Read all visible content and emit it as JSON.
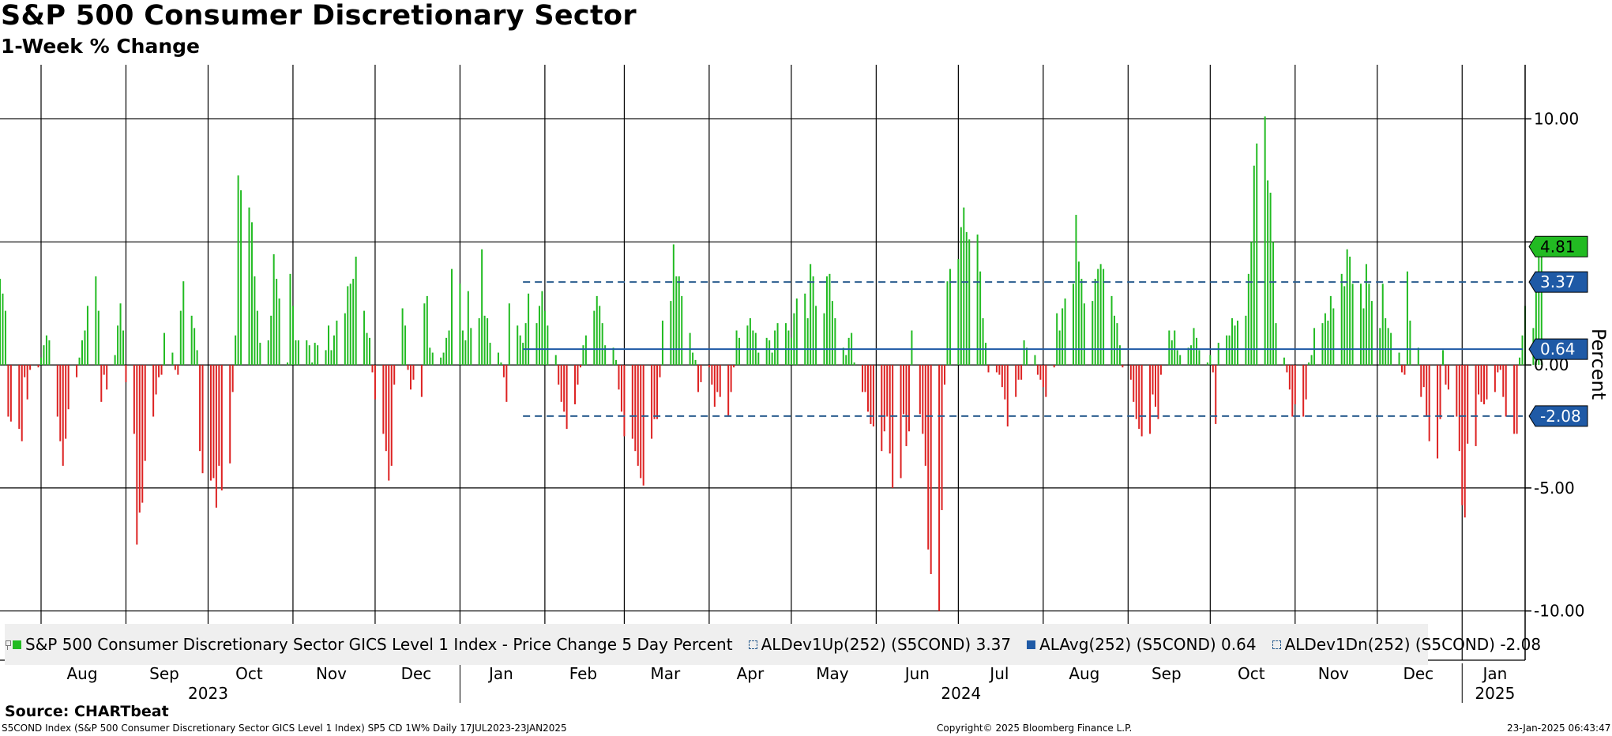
{
  "title": "S&P 500 Consumer Discretionary Sector",
  "subtitle": "1-Week % Change",
  "source": "Source: CHARTbeat",
  "footer": {
    "left": "S5COND Index (S&P 500 Consumer Discretionary Sector GICS Level 1 Index) SP5 CD 1W%  Daily 17JUL2023-23JAN2025",
    "middle": "Copyright© 2025 Bloomberg Finance L.P.",
    "right": "23-Jan-2025 06:43:47"
  },
  "legend": {
    "items": [
      {
        "label": "S&P 500 Consumer Discretionary Sector GICS Level 1 Index - Price Change 5 Day Percent",
        "style": "swatch",
        "color": "#22bb22"
      },
      {
        "label": "ALDev1Up(252) (S5COND) 3.37",
        "style": "dash",
        "color": "#2a5d8f"
      },
      {
        "label": "ALAvg(252) (S5COND) 0.64",
        "style": "swatch",
        "color": "#1f5aa6"
      },
      {
        "label": "ALDev1Dn(252) (S5COND) -2.08",
        "style": "dash",
        "color": "#2a5d8f"
      }
    ]
  },
  "colors": {
    "positive": "#22bb22",
    "negative": "#dd2222",
    "band": "#2a5d8f",
    "avg": "#1f5aa6",
    "tag_blue": "#1f5aa6",
    "tag_green": "#22bb22"
  },
  "chart_data": {
    "type": "bar",
    "title": "S&P 500 Consumer Discretionary Sector",
    "subtitle": "1-Week % Change",
    "ylabel": "Percent",
    "ylim": [
      -12,
      12.2
    ],
    "y_ticks": [
      {
        "value": 10,
        "label": "10.00"
      },
      {
        "value": 0,
        "label": "0.00"
      },
      {
        "value": -5,
        "label": "-5.00"
      },
      {
        "value": -10,
        "label": "-10.00"
      }
    ],
    "y_gridlines": [
      10,
      5,
      0,
      -5,
      -10
    ],
    "x_start": "2023-07-17",
    "x_end": "2025-01-24",
    "month_labels": [
      {
        "label": "Aug",
        "date": "2023-08-16"
      },
      {
        "label": "Sep",
        "date": "2023-09-15"
      },
      {
        "label": "Oct",
        "date": "2023-10-16"
      },
      {
        "label": "Nov",
        "date": "2023-11-15"
      },
      {
        "label": "Dec",
        "date": "2023-12-16"
      },
      {
        "label": "Jan",
        "date": "2024-01-16"
      },
      {
        "label": "Feb",
        "date": "2024-02-15"
      },
      {
        "label": "Mar",
        "date": "2024-03-16"
      },
      {
        "label": "Apr",
        "date": "2024-04-16"
      },
      {
        "label": "May",
        "date": "2024-05-16"
      },
      {
        "label": "Jun",
        "date": "2024-06-16"
      },
      {
        "label": "Jul",
        "date": "2024-07-16"
      },
      {
        "label": "Aug",
        "date": "2024-08-16"
      },
      {
        "label": "Sep",
        "date": "2024-09-15"
      },
      {
        "label": "Oct",
        "date": "2024-10-16"
      },
      {
        "label": "Nov",
        "date": "2024-11-15"
      },
      {
        "label": "Dec",
        "date": "2024-12-16"
      },
      {
        "label": "Jan",
        "date": "2025-01-13"
      }
    ],
    "year_labels": [
      {
        "label": "2023",
        "date": "2023-10-01"
      },
      {
        "label": "2024",
        "date": "2024-07-02"
      },
      {
        "label": "2025",
        "date": "2025-01-13"
      }
    ],
    "year_dividers": [
      "2024-01-01",
      "2025-01-01"
    ],
    "vertical_gridlines": [
      "2023-08-01",
      "2023-09-01",
      "2023-10-01",
      "2023-11-01",
      "2023-12-01",
      "2024-01-01",
      "2024-02-01",
      "2024-03-01",
      "2024-04-01",
      "2024-05-01",
      "2024-06-01",
      "2024-07-01",
      "2024-08-01",
      "2024-09-01",
      "2024-10-01",
      "2024-11-01",
      "2024-12-01",
      "2025-01-01"
    ],
    "reference_lines": [
      {
        "name": "ALDev1Up(252) (S5COND)",
        "value": 3.37,
        "style": "dashed",
        "start": "2024-01-24",
        "label": "3.37"
      },
      {
        "name": "ALAvg(252) (S5COND)",
        "value": 0.64,
        "style": "solid",
        "start": "2024-01-24",
        "label": "0.64"
      },
      {
        "name": "ALDev1Dn(252) (S5COND)",
        "value": -2.08,
        "style": "dashed",
        "start": "2024-01-24",
        "label": "-2.08"
      }
    ],
    "last_value": {
      "value": 4.81,
      "label": "4.81"
    },
    "series": [
      {
        "name": "S&P 500 Consumer Discretionary Sector GICS Level 1 Index - Price Change 5 Day Percent",
        "start": "2023-07-17",
        "values": [
          3.5,
          2.9,
          2.2,
          -2.1,
          -2.3,
          -2.6,
          -3.1,
          -0.5,
          -1.4,
          -0.2,
          -0.1,
          0.3,
          0.8,
          1.2,
          1.0,
          -2.1,
          -3.1,
          -4.1,
          -3.0,
          -1.8,
          -0.5,
          0.3,
          1.0,
          1.4,
          2.4,
          3.6,
          2.2,
          -1.5,
          -0.4,
          -1.0,
          0.4,
          1.6,
          2.5,
          1.4,
          -0.7,
          -2.8,
          -7.3,
          -6.0,
          -5.6,
          -3.9,
          -2.1,
          -1.2,
          -0.5,
          -0.4,
          1.3,
          0.5,
          -0.2,
          -0.4,
          2.2,
          3.4,
          2.0,
          1.5,
          0.6,
          -3.5,
          -4.4,
          -4.7,
          -4.6,
          -5.8,
          -4.1,
          -5.1,
          -4.0,
          -1.1,
          1.2,
          7.7,
          7.1,
          6.4,
          5.8,
          3.6,
          2.2,
          0.9,
          1.0,
          2.0,
          4.5,
          3.5,
          2.7,
          0.1,
          3.7,
          2.4,
          1.0,
          1.0,
          1.0,
          0.8,
          0.1,
          0.9,
          0.8,
          0.6,
          1.6,
          0.6,
          1.2,
          1.8,
          2.1,
          3.2,
          3.3,
          3.5,
          4.4,
          2.2,
          1.3,
          1.1,
          -0.3,
          -1.4,
          -2.8,
          -3.5,
          -4.7,
          -4.1,
          -0.8,
          2.3,
          1.6,
          -0.2,
          -1.0,
          -0.6,
          -1.3,
          2.5,
          2.8,
          0.7,
          0.5,
          0.3,
          0.5,
          1.1,
          1.4,
          3.9,
          3.3,
          1.4,
          1.0,
          3.0,
          1.5,
          1.9,
          4.7,
          2.0,
          1.9,
          0.9,
          0.5,
          0.1,
          -0.5,
          -1.5,
          2.5,
          1.6,
          1.2,
          0.9,
          1.7,
          2.9,
          1.7,
          2.4,
          3.0,
          2.2,
          1.6,
          0.4,
          -0.8,
          -1.5,
          -1.9,
          -2.6,
          -1.6,
          -0.8,
          -0.1,
          0.8,
          1.2,
          2.2,
          2.8,
          2.4,
          1.7,
          0.8,
          0.7,
          0.2,
          -1.0,
          -1.9,
          -2.9,
          -3.0,
          -3.5,
          -4.1,
          -4.6,
          -4.9,
          -3.0,
          -2.2,
          -2.2,
          -0.5,
          1.8,
          2.6,
          4.9,
          3.6,
          3.6,
          2.8,
          1.3,
          0.5,
          0.2,
          -1.1,
          -0.7,
          -0.1,
          -0.8,
          -1.7,
          -1.1,
          -1.3,
          -2.1,
          -1.1,
          -0.1,
          1.4,
          1.1,
          1.6,
          1.9,
          1.4,
          1.3,
          0.5,
          1.1,
          1.0,
          0.5,
          1.4,
          1.7,
          1.7,
          1.4,
          1.1,
          2.1,
          2.7,
          2.9,
          1.9,
          4.1,
          3.6,
          2.4,
          2.1,
          3.6,
          3.7,
          2.6,
          1.9,
          0.7,
          0.4,
          1.1,
          1.3,
          0.1,
          -1.1,
          -1.1,
          -1.9,
          -2.4,
          -2.5,
          -3.5,
          -2.7,
          -2.1,
          -3.6,
          -5.0,
          -4.6,
          -2.0,
          -3.3,
          -2.7,
          1.4,
          -2.0,
          -2.8,
          -4.1,
          -7.5,
          -8.5,
          -10.0,
          -5.9,
          -0.8,
          3.4,
          3.9,
          4.3,
          5.6,
          6.4,
          5.4,
          5.1,
          5.3,
          3.8,
          1.9,
          0.9,
          -0.3,
          -0.3,
          -0.4,
          -0.9,
          -1.4,
          -2.5,
          -1.3,
          -0.6,
          -0.6,
          1.0,
          0.7,
          0.4,
          -0.4,
          -0.6,
          -0.9,
          -1.3,
          -0.1,
          2.1,
          1.4,
          2.3,
          2.7,
          3.3,
          6.1,
          4.2,
          3.5,
          2.5,
          2.6,
          3.5,
          3.9,
          4.1,
          3.9,
          2.8,
          2.0,
          1.7,
          0.8,
          -0.1,
          -0.6,
          -1.5,
          -2.2,
          -2.6,
          -2.9,
          -2.8,
          -1.2,
          -1.7,
          -2.2,
          -0.4,
          1.4,
          1.0,
          1.4,
          0.6,
          0.4,
          0.7,
          0.8,
          1.5,
          1.1,
          0.6,
          0.1,
          0.4,
          -0.3,
          -2.4,
          0.9,
          1.2,
          1.2,
          1.9,
          1.6,
          1.8,
          2.0,
          3.7,
          5.0,
          8.1,
          9.0,
          10.1,
          7.5,
          7.0,
          5.0,
          1.7,
          0.3,
          -0.3,
          -1.0,
          -2.1,
          -1.6,
          -2.1,
          -1.4,
          0.1,
          0.4,
          1.5,
          1.7,
          2.1,
          1.8,
          2.8,
          2.3,
          3.7,
          3.2,
          4.7,
          4.4,
          3.3,
          3.3,
          2.3,
          4.1,
          3.3,
          2.6,
          1.5,
          3.3,
          1.9,
          1.5,
          1.3,
          0.5,
          -0.3,
          -0.4,
          3.8,
          1.8,
          0.7,
          -1.3,
          -0.9,
          -2.1,
          -3.1,
          -3.8,
          -2.2,
          0.6,
          -0.8,
          -1.0,
          -2.1,
          -3.5,
          -5.7,
          -6.2,
          -3.2,
          -3.3,
          -1.2,
          -1.5,
          -1.6,
          -1.4,
          -1.1,
          -0.3,
          -0.2,
          -1.3,
          -2.1,
          -2.8,
          -2.8,
          0.3,
          1.2,
          2.4,
          1.5,
          3.6,
          4.5,
          4.8
        ]
      }
    ]
  }
}
